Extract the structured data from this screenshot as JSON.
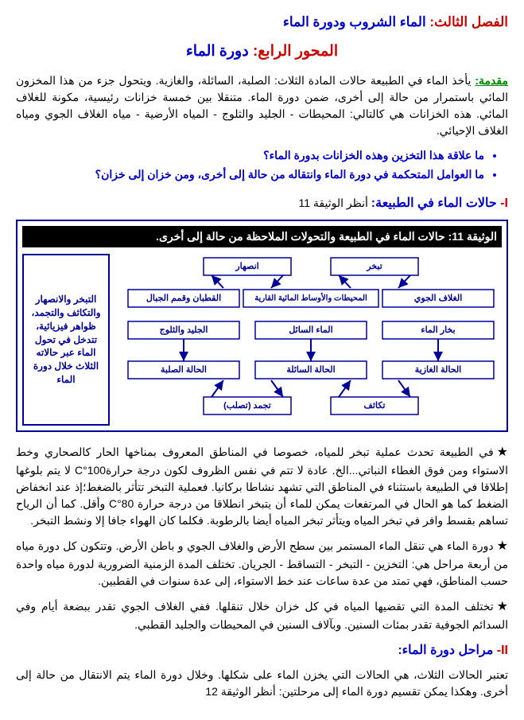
{
  "chapter": {
    "label": "الفصل الثالث:",
    "title": "الماء الشروب ودورة الماء"
  },
  "axis": {
    "label": "المحور الرابع:",
    "title": "دورة الماء"
  },
  "intro": {
    "label": "مقدمة:",
    "text": " يأخذ الماء في الطبيعة حالات المادة الثلاث: الصلبة، السائلة، والغازية. ويتحول جزء من هذا المخزون المائي باستمرار من حالة إلى أخرى، ضمن دورة الماء. متنقلا بين خمسة خزانات رئيسية، مكونة للغلاف المائي. هذه الخزانات هي كالتالي: المحيطات - الجليد والثلوج - المياه الأرضية - مياه الغلاف الجوي ومياه الغلاف الإحيائي."
  },
  "questions": [
    "ما علاقة هذا التخزين وهذه الخزانات بدورة الماء؟",
    "ما العوامل المتحكمة في دورة الماء وانتقاله من حالة إلى أخرى، ومن خزان إلى خزان؟"
  ],
  "section1": {
    "num": "I- ",
    "title": "حالات الماء في الطبيعة:",
    "after": " أنظر الوثيقة 11"
  },
  "doc11": {
    "title": "الوثيقة 11: حالات الماء في الطبيعة والتحولات الملاحظة من حالة إلى أخرى.",
    "side_note": "التبخر والانصهار والتكاثف والتجمد، ظواهر فيزيائية، تتدخل في تحول الماء عبر حالاته الثلاث خلال دورة الماء",
    "boxes": {
      "r1c1": "تبخر",
      "r1c2": "انصهار",
      "r2c1": "الغلاف الجوي",
      "r2c2": "المحيطات والأوساط المائية القارية",
      "r2c3": "القطبان وقمم الجبال",
      "r3c1": "بخار الماء",
      "r3c2": "الماء السائل",
      "r3c3": "الجليد والثلوج",
      "r4c1": "الحالة الغازية",
      "r4c2": "الحالة السائلة",
      "r4c3": "الحالة الصلبة",
      "r5c1": "تكاثف",
      "r5c2": "تجمد (تصلب)"
    },
    "colors": {
      "border": "#000099",
      "fill": "#ffffff",
      "text": "#000099",
      "arrow": "#000099"
    }
  },
  "paragraphs": [
    "في الطبيعة تحدث عملية تبخر للمياه، خصوصا في المناطق المعروف بمناخها الحار كالصحاري وخط الاستواء ومن فوق الغطاء النباتي...الخ. عادة لا تتم في نفس الظروف لكون درجة حرارة100°C لا يتم بلوغها إطلاقا في الطبيعة باستثناء في المناطق التي تشهد نشاطا بركانيا. فعملية التبخر تتأثر بالضغط؛إذ عند انخفاض الضغط كما هو الحال في المرتفعات يمكن للماء أن يتبخر انطلاقا من درجة حرارة 80°C وأقل. كما أن الرياح تساهم بقسط وافر في تبخر المياه ويتأثر تبخر المياه أيضا بالرطوبة. فكلما كان الهواء جافا إلا ونشط التبخر.",
    "دورة الماء هي تنقل الماء المستمر بين سطح الأرض والغلاف الجوي و باطن الأرض. وتتكون كل دورة مياه من أربعة مراحل هي: التخزين - التبخر - التساقط - الجريان.\nتختلف المدة الزمنية الضرورية لدورة مياه واحدة حسب المناطق، فهي تمتد من عدة ساعات عند خط الاستواء، إلى عدة سنوات في القطبين.",
    "تختلف المدة التي تقضيها المياه في كل خزان خلال تنقلها. ففي الغلاف الجوي تقدر ببضعة أيام وفي السدائم الجوفية تقدر بمئات السنين. وبآلاف السنين في المحيطات والجليد القطبي."
  ],
  "section2": {
    "num": "II- ",
    "title": "مراحل دورة الماء:"
  },
  "closing": "تعتبر الحالات الثلاث، هي الحالات التي يخزن الماء على شكلها. وخلال دورة الماء يتم الانتقال من حالة إلى أخرى. وهكذا يمكن تقسيم دورة الماء إلى مرحلتين: أنظر الوثيقة 12"
}
